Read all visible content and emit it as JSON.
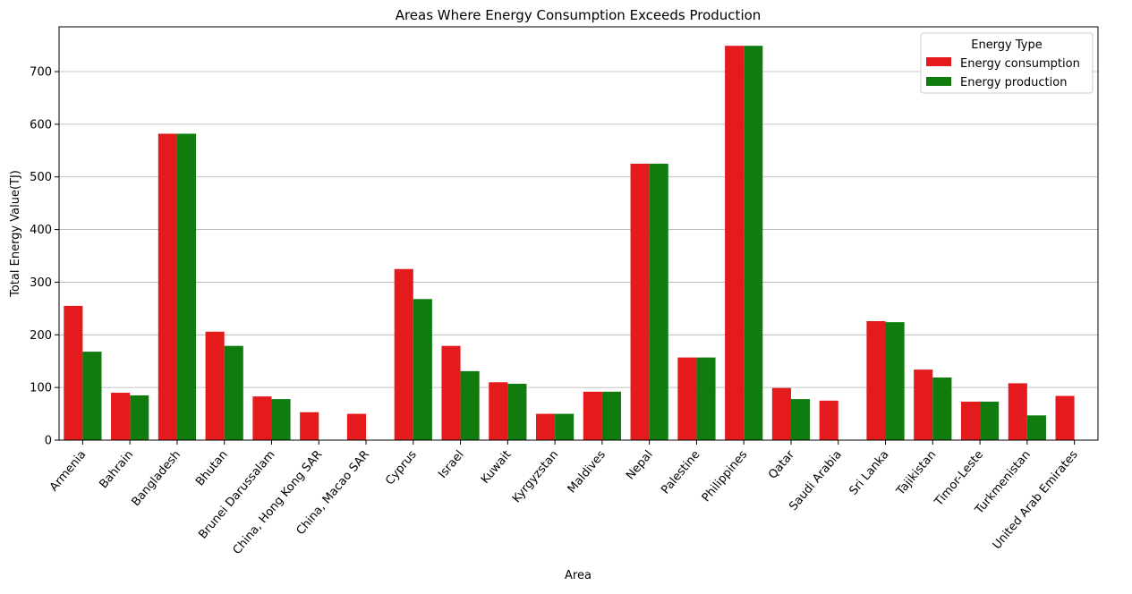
{
  "chart_data": {
    "type": "bar",
    "title": "Areas Where Energy Consumption Exceeds Production",
    "xlabel": "Area",
    "ylabel": "Total Energy Value(TJ)",
    "ylim": [
      0,
      785
    ],
    "yticks": [
      0,
      100,
      200,
      300,
      400,
      500,
      600,
      700
    ],
    "grid": "horizontal",
    "legend": {
      "title": "Energy Type",
      "position": "top-right"
    },
    "categories": [
      "Armenia",
      "Bahrain",
      "Bangladesh",
      "Bhutan",
      "Brunei Darussalam",
      "China, Hong Kong SAR",
      "China, Macao SAR",
      "Cyprus",
      "Israel",
      "Kuwait",
      "Kyrgyzstan",
      "Maldives",
      "Nepal",
      "Palestine",
      "Philippines",
      "Qatar",
      "Saudi Arabia",
      "Sri Lanka",
      "Tajikistan",
      "Timor-Leste",
      "Turkmenistan",
      "United Arab Emirates"
    ],
    "series": [
      {
        "name": "Energy consumption",
        "color": "#e41a1c",
        "values": [
          255,
          90,
          582,
          206,
          83,
          53,
          50,
          325,
          179,
          110,
          50,
          92,
          525,
          157,
          749,
          99,
          75,
          226,
          134,
          73,
          108,
          84
        ]
      },
      {
        "name": "Energy production",
        "color": "#107c10",
        "values": [
          168,
          85,
          582,
          179,
          78,
          0,
          0,
          268,
          131,
          107,
          50,
          92,
          525,
          157,
          749,
          78,
          0,
          224,
          119,
          73,
          47,
          0
        ]
      }
    ]
  }
}
